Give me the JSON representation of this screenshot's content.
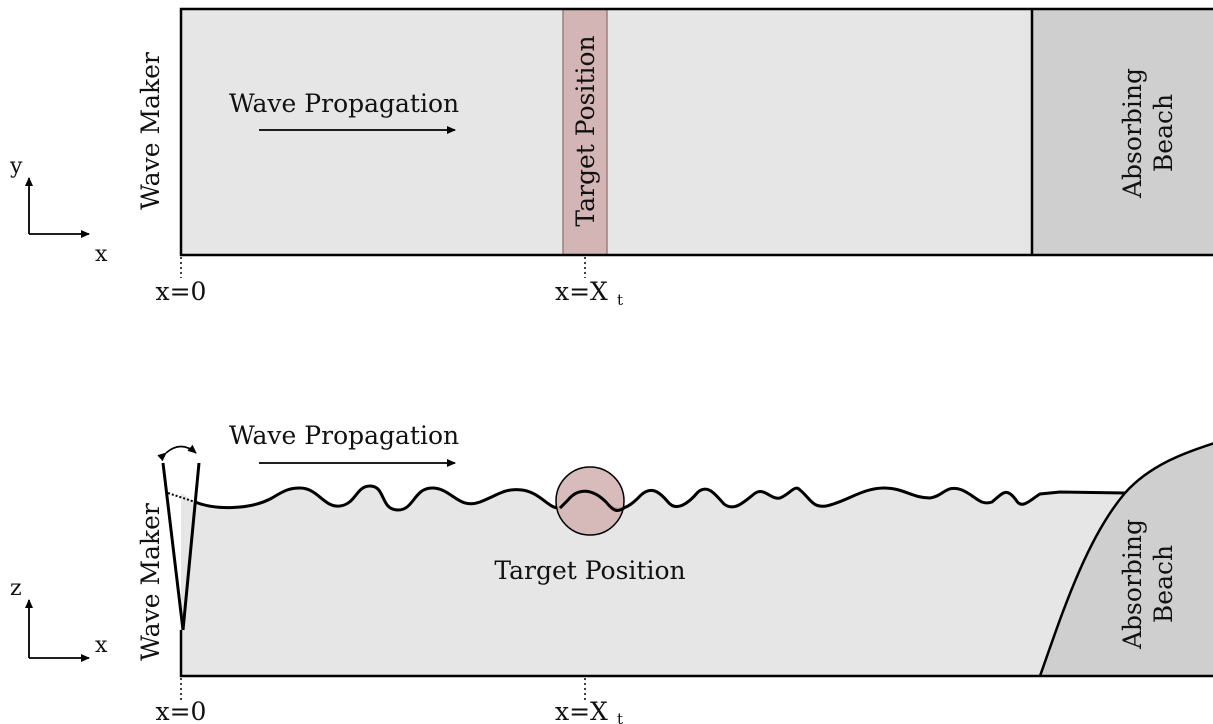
{
  "top_view": {
    "wave_maker": "Wave Maker",
    "wave_propagation": "Wave Propagation",
    "target_position": "Target Position",
    "beach_line1": "Absorbing",
    "beach_line2": "Beach",
    "x0_label": "x=0",
    "xt_label": "x=X",
    "xt_subscript": "t",
    "axis_vertical": "y",
    "axis_horizontal": "x"
  },
  "side_view": {
    "wave_maker": "Wave Maker",
    "wave_propagation": "Wave Propagation",
    "target_position": "Target Position",
    "beach_line1": "Absorbing",
    "beach_line2": "Beach",
    "x0_label": "x=0",
    "xt_label": "x=X",
    "xt_subscript": "t",
    "axis_vertical": "z",
    "axis_horizontal": "x"
  },
  "colors": {
    "tank_fill": "#e6e6e6",
    "beach_fill": "#cfcfcf",
    "target_fill": "#d4b5b5",
    "stroke": "#000000"
  }
}
